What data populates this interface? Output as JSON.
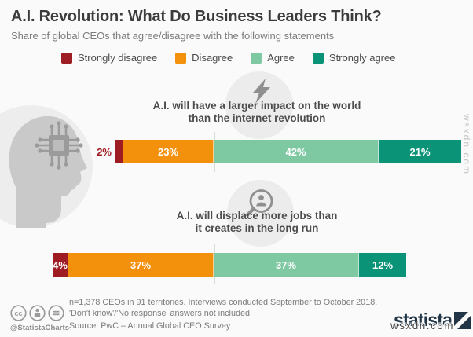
{
  "header": {
    "title": "A.I. Revolution: What Do Business Leaders Think?",
    "subtitle": "Share of global CEOs that agree/disagree with the following statements"
  },
  "legend": {
    "items": [
      {
        "label": "Strongly disagree",
        "color": "#9e1c23"
      },
      {
        "label": "Disagree",
        "color": "#f3910d"
      },
      {
        "label": "Agree",
        "color": "#7ec8a2"
      },
      {
        "label": "Strongly agree",
        "color": "#0b9378"
      }
    ]
  },
  "chart_data": {
    "type": "bar",
    "subtype": "horizontal-diverging-stacked",
    "title": "A.I. Revolution: What Do Business Leaders Think?",
    "subtitle": "Share of global CEOs that agree/disagree with the following statements",
    "unit": "%",
    "legend_position": "top",
    "categories": [
      "Strongly disagree",
      "Disagree",
      "Agree",
      "Strongly agree"
    ],
    "colors": [
      "#9e1c23",
      "#f3910d",
      "#7ec8a2",
      "#0b9378"
    ],
    "baseline": "bars aligned at the disagree/agree boundary",
    "statements": [
      {
        "line1": "A.I. will have a larger impact on the world",
        "line2": "than the internet revolution",
        "icon": "lightning-icon",
        "values": [
          2,
          23,
          42,
          21
        ]
      },
      {
        "line1": "A.I. will displace more jobs than",
        "line2": "it creates in the long run",
        "icon": "magnifier-person-icon",
        "values": [
          4,
          37,
          37,
          12
        ]
      }
    ]
  },
  "footer": {
    "note_line1": "n=1,378 CEOs in 91 territories. Interviews conducted September to October 2018.",
    "note_line2": "'Don't know'/'No response' answers not included.",
    "source": "Source: PwC – Annual Global CEO Survey",
    "credit": "@StatistaCharts",
    "brand": "statista"
  },
  "watermark": {
    "text": "wsxdn.com"
  }
}
